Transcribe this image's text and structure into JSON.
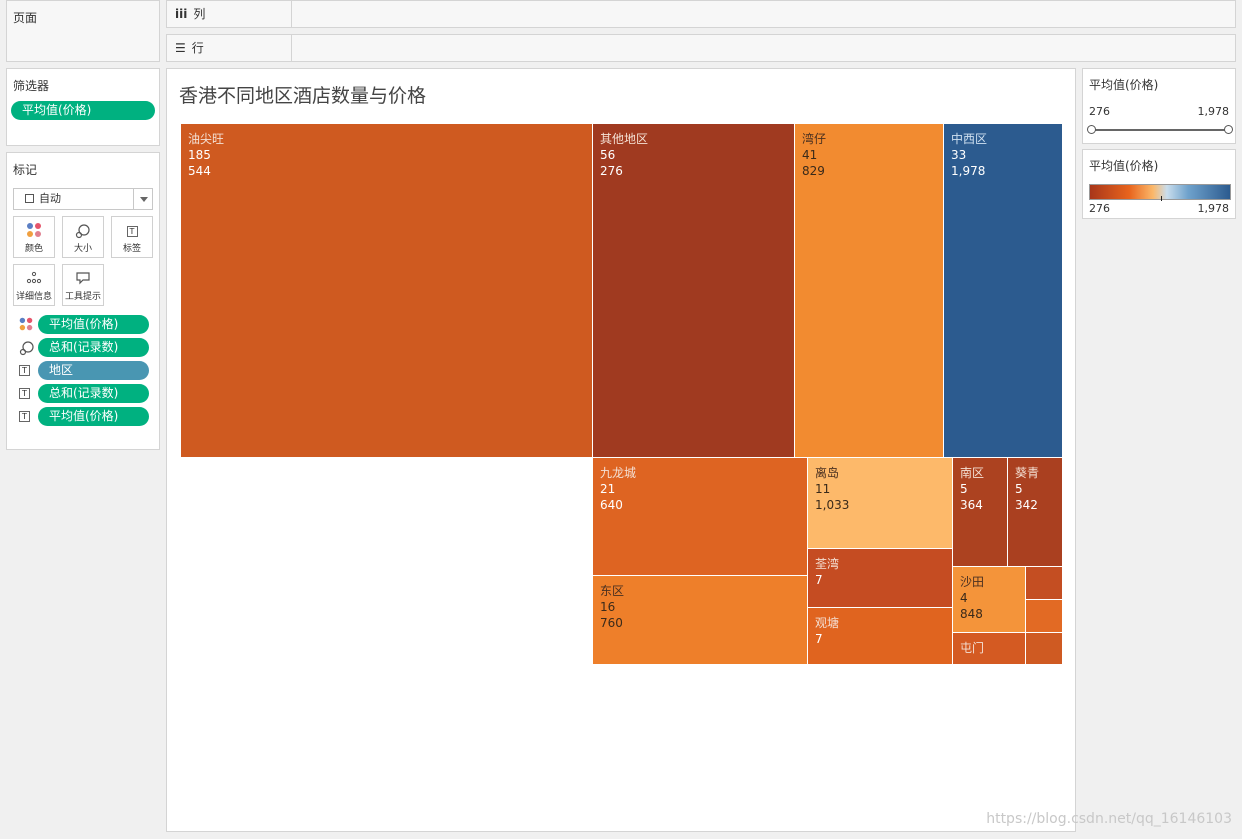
{
  "pages": {
    "title": "页面"
  },
  "columns_shelf": {
    "icon": "iii",
    "label": "列"
  },
  "rows_shelf": {
    "icon": "☰",
    "label": "行"
  },
  "filters": {
    "title": "筛选器",
    "pill": "平均值(价格)"
  },
  "marks": {
    "title": "标记",
    "mark_type": "自动",
    "buttons": {
      "color": "颜色",
      "size": "大小",
      "label": "标签",
      "detail": "详细信息",
      "tooltip": "工具提示"
    },
    "fields": [
      "平均值(价格)",
      "总和(记录数)",
      "地区",
      "总和(记录数)",
      "平均值(价格)"
    ]
  },
  "view": {
    "title": "香港不同地区酒店数量与价格"
  },
  "chart_data": {
    "type": "treemap",
    "title": "香港不同地区酒店数量与价格",
    "size_measure": "总和(记录数)",
    "color_measure": "平均值(价格)",
    "items": [
      {
        "name": "油尖旺",
        "count": 185,
        "price": 544,
        "count_label": "185",
        "price_label": "544",
        "color": "#cf5a20"
      },
      {
        "name": "其他地区",
        "count": 56,
        "price": 276,
        "count_label": "56",
        "price_label": "276",
        "color": "#a03a20"
      },
      {
        "name": "湾仔",
        "count": 41,
        "price": 829,
        "count_label": "41",
        "price_label": "829",
        "color": "#f28b30"
      },
      {
        "name": "中西区",
        "count": 33,
        "price": 1978,
        "count_label": "33",
        "price_label": "1,978",
        "color": "#2c5b8f"
      },
      {
        "name": "九龙城",
        "count": 21,
        "price": 640,
        "count_label": "21",
        "price_label": "640",
        "color": "#de6422"
      },
      {
        "name": "离岛",
        "count": 11,
        "price": 1033,
        "count_label": "11",
        "price_label": "1,033",
        "color": "#fdb96a"
      },
      {
        "name": "南区",
        "count": 5,
        "price": 364,
        "count_label": "5",
        "price_label": "364",
        "color": "#ac4220"
      },
      {
        "name": "葵青",
        "count": 5,
        "price": 342,
        "count_label": "5",
        "price_label": "342",
        "color": "#aa4020"
      },
      {
        "name": "东区",
        "count": 16,
        "price": 760,
        "count_label": "16",
        "price_label": "760",
        "color": "#ee7f2a"
      },
      {
        "name": "荃湾",
        "count": 7,
        "price": null,
        "count_label": "7",
        "price_label": "",
        "color": "#c54c22"
      },
      {
        "name": "观塘",
        "count": 7,
        "price": null,
        "count_label": "7",
        "price_label": "",
        "color": "#e0641f"
      },
      {
        "name": "沙田",
        "count": 4,
        "price": 848,
        "count_label": "4",
        "price_label": "848",
        "color": "#f4943a"
      },
      {
        "name": "屯门",
        "count": null,
        "price": null,
        "count_label": "",
        "price_label": "",
        "color": "#d45a22"
      },
      {
        "name": "",
        "count": null,
        "price": null,
        "count_label": "",
        "price_label": "",
        "color": "#c44e22"
      },
      {
        "name": "",
        "count": null,
        "price": null,
        "count_label": "",
        "price_label": "",
        "color": "#e26a24"
      },
      {
        "name": "",
        "count": null,
        "price": null,
        "count_label": "",
        "price_label": "",
        "color": "#cf5a22"
      }
    ]
  },
  "legend_filter": {
    "title": "平均值(价格)",
    "min": "276",
    "max": "1,978"
  },
  "legend_color": {
    "title": "平均值(价格)",
    "min": "276",
    "max": "1,978"
  },
  "watermark": "https://blog.csdn.net/qq_16146103"
}
